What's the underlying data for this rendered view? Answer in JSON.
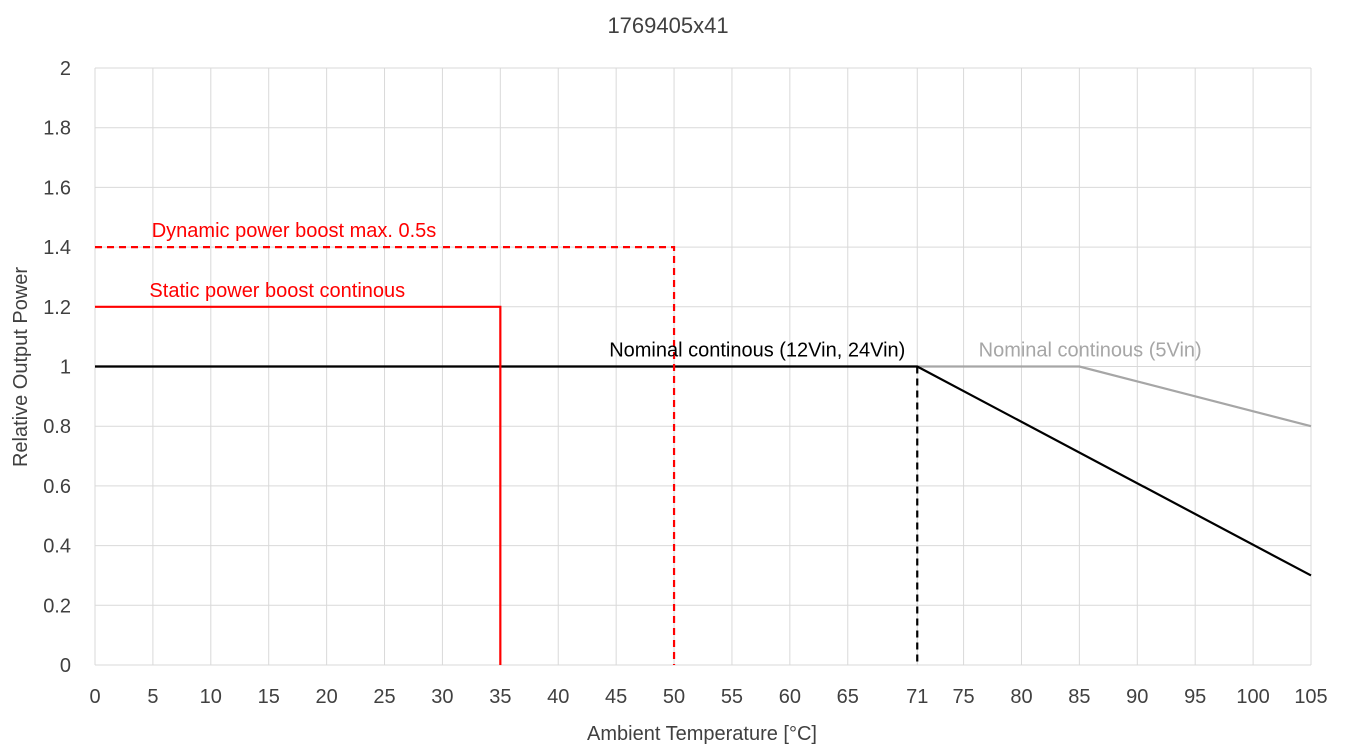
{
  "chart_data": {
    "type": "line",
    "title": "1769405x41",
    "xlabel": "Ambient Temperature [°C]",
    "ylabel": "Relative Output Power",
    "x_ticks": [
      0,
      5,
      10,
      15,
      20,
      25,
      30,
      35,
      40,
      45,
      50,
      55,
      60,
      65,
      71,
      75,
      80,
      85,
      90,
      95,
      100,
      105
    ],
    "y_ticks": [
      0,
      0.2,
      0.4,
      0.6,
      0.8,
      1,
      1.2,
      1.4,
      1.6,
      1.8,
      2
    ],
    "xlim": [
      0,
      105
    ],
    "ylim": [
      0,
      2
    ],
    "grid": true,
    "legend": "none",
    "series": [
      {
        "name": "Nominal continous (5Vin)",
        "color": "#a6a6a6",
        "style": "solid",
        "points": [
          [
            0,
            1
          ],
          [
            85,
            1
          ],
          [
            105,
            0.8
          ]
        ]
      },
      {
        "name": "Nominal continous (12Vin, 24Vin)",
        "color": "#000000",
        "style": "solid",
        "points": [
          [
            0,
            1
          ],
          [
            71,
            1
          ],
          [
            105,
            0.3
          ]
        ]
      },
      {
        "name": "Static power boost continous",
        "color": "#ff0000",
        "style": "solid",
        "points": [
          [
            0,
            1.2
          ],
          [
            35,
            1.2
          ],
          [
            35,
            0
          ]
        ]
      },
      {
        "name": "Dynamic power boost max. 0.5s",
        "color": "#ff0000",
        "style": "dashed",
        "points": [
          [
            0,
            1.4
          ],
          [
            50,
            1.4
          ],
          [
            50,
            0
          ]
        ]
      }
    ],
    "markers": [
      {
        "color": "#000000",
        "style": "dashed",
        "points": [
          [
            71,
            1
          ],
          [
            71,
            0
          ]
        ]
      }
    ],
    "annotations": [
      {
        "text": "Dynamic power boost max. 0.5s",
        "color": "#ff0000",
        "x": 4.9,
        "y": 1.4
      },
      {
        "text": "Static power boost continous",
        "color": "#ff0000",
        "x": 4.7,
        "y": 1.2
      },
      {
        "text": "Nominal continous (12Vin, 24Vin)",
        "color": "#000000",
        "x": 44.4,
        "y": 1
      },
      {
        "text": "Nominal continous (5Vin)",
        "color": "#a6a6a6",
        "x": 76.3,
        "y": 1
      }
    ]
  }
}
